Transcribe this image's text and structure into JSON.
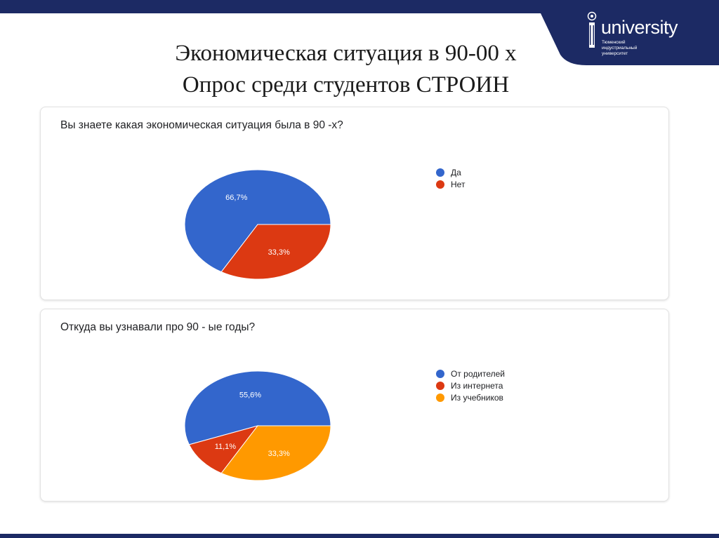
{
  "slide": {
    "title_line1": "Экономическая ситуация в 90-00 х",
    "title_line2": "Опрос среди студентов СТРОИН"
  },
  "logo": {
    "word": "university",
    "sub_line1": "Тюменский",
    "sub_line2": "индустриальный",
    "sub_line3": "университет"
  },
  "colors": {
    "navy": "#1c2a64",
    "blue": "#3366cc",
    "red": "#dc3912",
    "orange": "#ff9900"
  },
  "chart_data": [
    {
      "type": "pie",
      "title": "Вы знаете какая экономическая ситуация была в 90 -х?",
      "slices": [
        {
          "label": "Да",
          "value": 66.7,
          "display": "66,7%",
          "color": "#3366cc"
        },
        {
          "label": "Нет",
          "value": 33.3,
          "display": "33,3%",
          "color": "#dc3912"
        }
      ],
      "legend_position": "right"
    },
    {
      "type": "pie",
      "title": "Откуда вы узнавали про 90 - ые годы?",
      "slices": [
        {
          "label": "От родителей",
          "value": 55.6,
          "display": "55,6%",
          "color": "#3366cc"
        },
        {
          "label": "Из интернета",
          "value": 11.1,
          "display": "11,1%",
          "color": "#dc3912"
        },
        {
          "label": "Из учебников",
          "value": 33.3,
          "display": "33,3%",
          "color": "#ff9900"
        }
      ],
      "legend_position": "right"
    }
  ]
}
